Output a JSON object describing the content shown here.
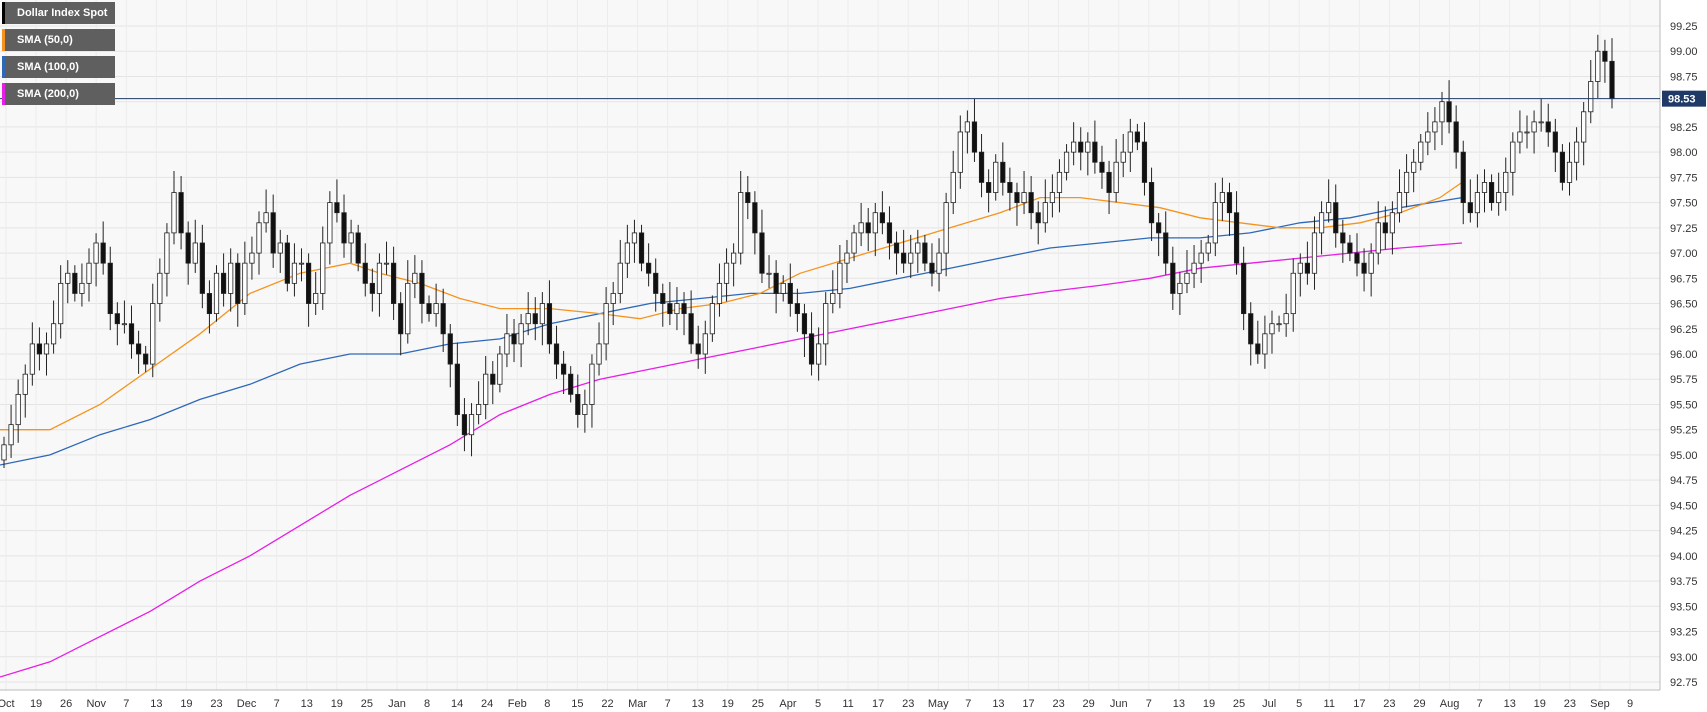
{
  "chart_data": {
    "type": "candlestick",
    "title": "",
    "instrument": "Dollar Index Spot",
    "current_price": 98.53,
    "current_price_label": "98.53",
    "ylim": [
      92.75,
      99.25
    ],
    "y_ticks": [
      "99.25",
      "99.00",
      "98.75",
      "98.50",
      "98.25",
      "98.00",
      "97.75",
      "97.50",
      "97.25",
      "97.00",
      "96.75",
      "96.50",
      "96.25",
      "96.00",
      "95.75",
      "95.50",
      "95.25",
      "95.00",
      "94.75",
      "94.50",
      "94.25",
      "94.00",
      "93.75",
      "93.50",
      "93.25",
      "93.00",
      "92.75"
    ],
    "x_labels": [
      "Oct",
      "19",
      "26",
      "Nov",
      "7",
      "13",
      "19",
      "23",
      "Dec",
      "7",
      "13",
      "19",
      "25",
      "Jan",
      "8",
      "14",
      "24",
      "Feb",
      "8",
      "15",
      "22",
      "Mar",
      "7",
      "13",
      "19",
      "25",
      "Apr",
      "5",
      "11",
      "17",
      "23",
      "May",
      "7",
      "13",
      "17",
      "23",
      "29",
      "Jun",
      "7",
      "13",
      "19",
      "25",
      "Jul",
      "5",
      "11",
      "17",
      "23",
      "29",
      "Aug",
      "7",
      "13",
      "19",
      "23",
      "Sep",
      "9"
    ],
    "legend": [
      {
        "label": "Dollar Index Spot",
        "color": "#000000"
      },
      {
        "label": "SMA (50,0)",
        "color": "#f5931e"
      },
      {
        "label": "SMA (100,0)",
        "color": "#2e68b8"
      },
      {
        "label": "SMA (200,0)",
        "color": "#e61ee6"
      }
    ],
    "close_series": [
      95.1,
      95.3,
      95.6,
      95.8,
      96.1,
      96.0,
      96.1,
      96.3,
      96.7,
      96.8,
      96.6,
      96.7,
      96.9,
      97.1,
      96.9,
      96.4,
      96.3,
      96.3,
      96.1,
      96.0,
      95.9,
      96.5,
      96.8,
      97.2,
      97.6,
      97.2,
      96.9,
      97.1,
      96.6,
      96.4,
      96.8,
      96.6,
      96.9,
      96.5,
      96.9,
      97.0,
      97.3,
      97.4,
      97.0,
      97.1,
      96.7,
      96.9,
      96.9,
      96.5,
      96.6,
      97.1,
      97.5,
      97.4,
      97.1,
      97.2,
      96.9,
      96.7,
      96.6,
      96.9,
      96.9,
      96.5,
      96.2,
      96.7,
      96.8,
      96.5,
      96.4,
      96.5,
      96.2,
      95.9,
      95.4,
      95.2,
      95.4,
      95.5,
      95.8,
      95.7,
      96.0,
      96.2,
      96.1,
      96.3,
      96.4,
      96.3,
      96.5,
      96.1,
      95.9,
      95.8,
      95.6,
      95.4,
      95.5,
      95.9,
      96.1,
      96.5,
      96.6,
      96.9,
      97.1,
      97.2,
      96.9,
      96.8,
      96.6,
      96.5,
      96.4,
      96.5,
      96.4,
      96.1,
      96.0,
      96.2,
      96.5,
      96.7,
      96.9,
      97.0,
      97.6,
      97.5,
      97.2,
      96.8,
      96.8,
      96.6,
      96.7,
      96.5,
      96.4,
      96.2,
      95.9,
      96.1,
      96.5,
      96.6,
      96.9,
      97.0,
      97.2,
      97.3,
      97.2,
      97.4,
      97.3,
      97.1,
      97.0,
      96.9,
      97.0,
      97.1,
      96.9,
      96.8,
      97.0,
      97.5,
      97.8,
      98.2,
      98.3,
      98.0,
      97.7,
      97.6,
      97.9,
      97.7,
      97.6,
      97.5,
      97.6,
      97.4,
      97.3,
      97.5,
      97.6,
      97.8,
      98.0,
      98.1,
      98.0,
      98.1,
      97.9,
      97.8,
      97.6,
      97.9,
      98.0,
      98.2,
      98.1,
      97.7,
      97.3,
      97.2,
      96.9,
      96.6,
      96.7,
      96.8,
      96.9,
      97.0,
      97.1,
      97.5,
      97.6,
      97.4,
      96.9,
      96.4,
      96.1,
      96.0,
      96.2,
      96.3,
      96.3,
      96.4,
      96.8,
      96.9,
      96.8,
      97.2,
      97.4,
      97.5,
      97.2,
      97.1,
      97.0,
      96.9,
      96.8,
      97.0,
      97.3,
      97.2,
      97.4,
      97.6,
      97.8,
      97.9,
      98.1,
      98.2,
      98.3,
      98.5,
      98.3,
      98.0,
      97.5,
      97.4,
      97.6,
      97.7,
      97.5,
      97.6,
      97.8,
      98.1,
      98.2,
      98.2,
      98.3,
      98.3,
      98.2,
      98.0,
      97.7,
      97.9,
      98.1,
      98.4,
      98.7,
      99.0,
      98.9,
      98.53
    ],
    "sma50": [
      [
        0,
        95.25
      ],
      [
        50,
        95.25
      ],
      [
        100,
        95.5
      ],
      [
        150,
        95.85
      ],
      [
        200,
        96.2
      ],
      [
        250,
        96.6
      ],
      [
        300,
        96.8
      ],
      [
        350,
        96.9
      ],
      [
        380,
        96.8
      ],
      [
        420,
        96.7
      ],
      [
        460,
        96.55
      ],
      [
        500,
        96.45
      ],
      [
        550,
        96.45
      ],
      [
        600,
        96.4
      ],
      [
        640,
        96.35
      ],
      [
        680,
        96.45
      ],
      [
        720,
        96.5
      ],
      [
        760,
        96.6
      ],
      [
        800,
        96.8
      ],
      [
        850,
        96.95
      ],
      [
        900,
        97.1
      ],
      [
        950,
        97.25
      ],
      [
        1000,
        97.4
      ],
      [
        1040,
        97.55
      ],
      [
        1080,
        97.55
      ],
      [
        1120,
        97.5
      ],
      [
        1160,
        97.45
      ],
      [
        1200,
        97.35
      ],
      [
        1240,
        97.3
      ],
      [
        1280,
        97.25
      ],
      [
        1320,
        97.25
      ],
      [
        1360,
        97.3
      ],
      [
        1400,
        97.4
      ],
      [
        1440,
        97.55
      ],
      [
        1462,
        97.7
      ]
    ],
    "sma100": [
      [
        0,
        94.9
      ],
      [
        50,
        95.0
      ],
      [
        100,
        95.2
      ],
      [
        150,
        95.35
      ],
      [
        200,
        95.55
      ],
      [
        250,
        95.7
      ],
      [
        300,
        95.9
      ],
      [
        350,
        96.0
      ],
      [
        400,
        96.0
      ],
      [
        450,
        96.1
      ],
      [
        500,
        96.15
      ],
      [
        550,
        96.3
      ],
      [
        600,
        96.4
      ],
      [
        650,
        96.5
      ],
      [
        700,
        96.55
      ],
      [
        750,
        96.6
      ],
      [
        800,
        96.6
      ],
      [
        850,
        96.65
      ],
      [
        900,
        96.75
      ],
      [
        950,
        96.85
      ],
      [
        1000,
        96.95
      ],
      [
        1050,
        97.05
      ],
      [
        1100,
        97.1
      ],
      [
        1150,
        97.15
      ],
      [
        1200,
        97.15
      ],
      [
        1250,
        97.2
      ],
      [
        1300,
        97.3
      ],
      [
        1350,
        97.35
      ],
      [
        1400,
        97.45
      ],
      [
        1462,
        97.55
      ]
    ],
    "sma200": [
      [
        0,
        92.8
      ],
      [
        50,
        92.95
      ],
      [
        100,
        93.2
      ],
      [
        150,
        93.45
      ],
      [
        200,
        93.75
      ],
      [
        250,
        94.0
      ],
      [
        300,
        94.3
      ],
      [
        350,
        94.6
      ],
      [
        400,
        94.85
      ],
      [
        450,
        95.1
      ],
      [
        500,
        95.4
      ],
      [
        550,
        95.6
      ],
      [
        600,
        95.75
      ],
      [
        650,
        95.85
      ],
      [
        700,
        95.95
      ],
      [
        750,
        96.05
      ],
      [
        800,
        96.15
      ],
      [
        850,
        96.25
      ],
      [
        900,
        96.35
      ],
      [
        950,
        96.45
      ],
      [
        1000,
        96.55
      ],
      [
        1050,
        96.62
      ],
      [
        1100,
        96.68
      ],
      [
        1150,
        96.75
      ],
      [
        1200,
        96.85
      ],
      [
        1250,
        96.9
      ],
      [
        1300,
        96.95
      ],
      [
        1350,
        97.0
      ],
      [
        1400,
        97.05
      ],
      [
        1462,
        97.1
      ]
    ],
    "grid": true,
    "y_axis_position": "right"
  }
}
